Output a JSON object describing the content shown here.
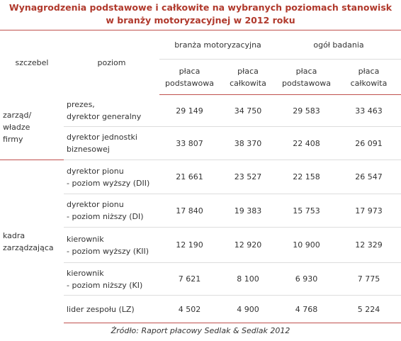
{
  "title": [
    "Wynagrodzenia podstawowe i całkowite na wybranych poziomach stanowisk",
    "w branży motoryzacyjnej w 2012 roku"
  ],
  "table": {
    "header": {
      "level": "szczebel",
      "position": "poziom",
      "groups": [
        "branża motoryzacyjna",
        "ogół badania"
      ],
      "sub": [
        "płaca\npodstawowa",
        "płaca\ncałkowita",
        "płaca\npodstawowa",
        "płaca\ncałkowita"
      ]
    },
    "sections": [
      {
        "level": "zarząd/\nwładze\nfirmy",
        "rows": [
          {
            "position": "prezes,\ndyrektor generalny",
            "values": [
              "29 149",
              "34 750",
              "29 583",
              "33 463"
            ]
          },
          {
            "position": "dyrektor jednostki\nbiznesowej",
            "values": [
              "33 807",
              "38 370",
              "22 408",
              "26 091"
            ]
          }
        ]
      },
      {
        "level": "kadra\nzarządzająca",
        "rows": [
          {
            "position": "dyrektor pionu\n- poziom wyższy  (DII)",
            "values": [
              "21 661",
              "23 527",
              "22 158",
              "26 547"
            ]
          },
          {
            "position": "dyrektor pionu\n- poziom niższy (DI)",
            "values": [
              "17 840",
              "19 383",
              "15 753",
              "17 973"
            ]
          },
          {
            "position": "kierownik\n- poziom wyższy  (KII)",
            "values": [
              "12 190",
              "12 920",
              "10 900",
              "12 329"
            ]
          },
          {
            "position": "kierownik\n- poziom niższy (KI)",
            "values": [
              "7 621",
              "8 100",
              "6 930",
              "7 775"
            ]
          },
          {
            "position": "lider zespołu (LZ)",
            "values": [
              "4 502",
              "4 900",
              "4 768",
              "5 224"
            ]
          }
        ]
      }
    ]
  },
  "source": "Źródło: Raport płacowy Sedlak & Sedlak 2012"
}
